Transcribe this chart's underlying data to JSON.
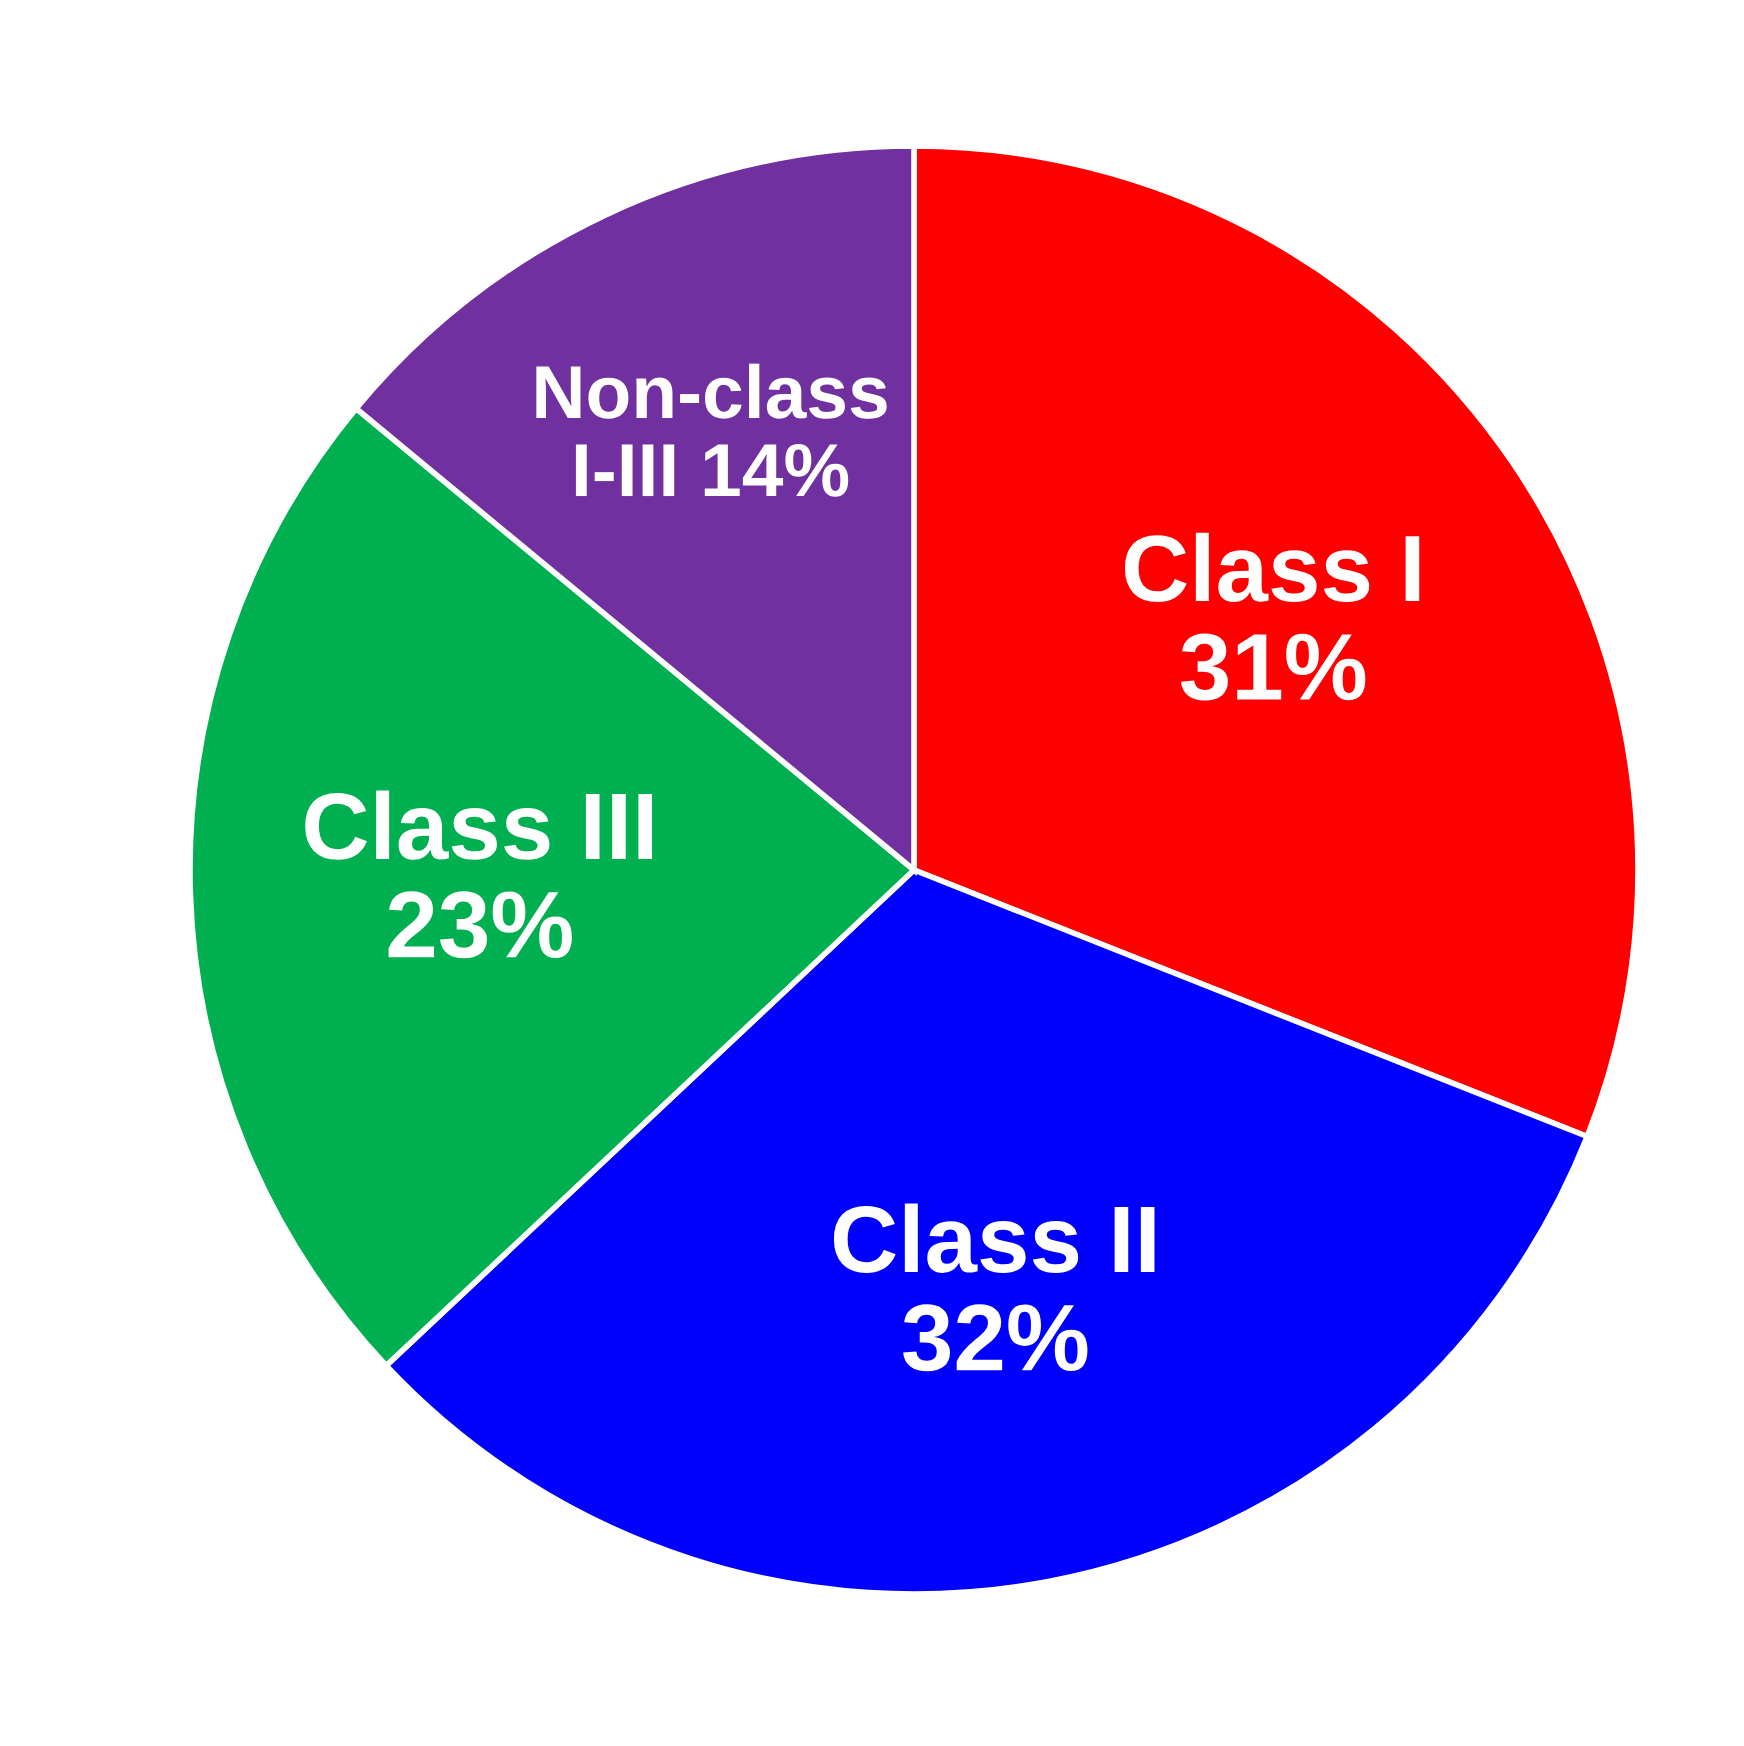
{
  "chart_data": {
    "type": "pie",
    "categories": [
      "Class I",
      "Class II",
      "Class III",
      "Non-class I-III"
    ],
    "values": [
      31,
      32,
      23,
      14
    ],
    "value_labels": [
      "31%",
      "32%",
      "23%",
      "14%"
    ],
    "colors": [
      "#ff0000",
      "#0000ff",
      "#00b050",
      "#7030a0"
    ]
  }
}
